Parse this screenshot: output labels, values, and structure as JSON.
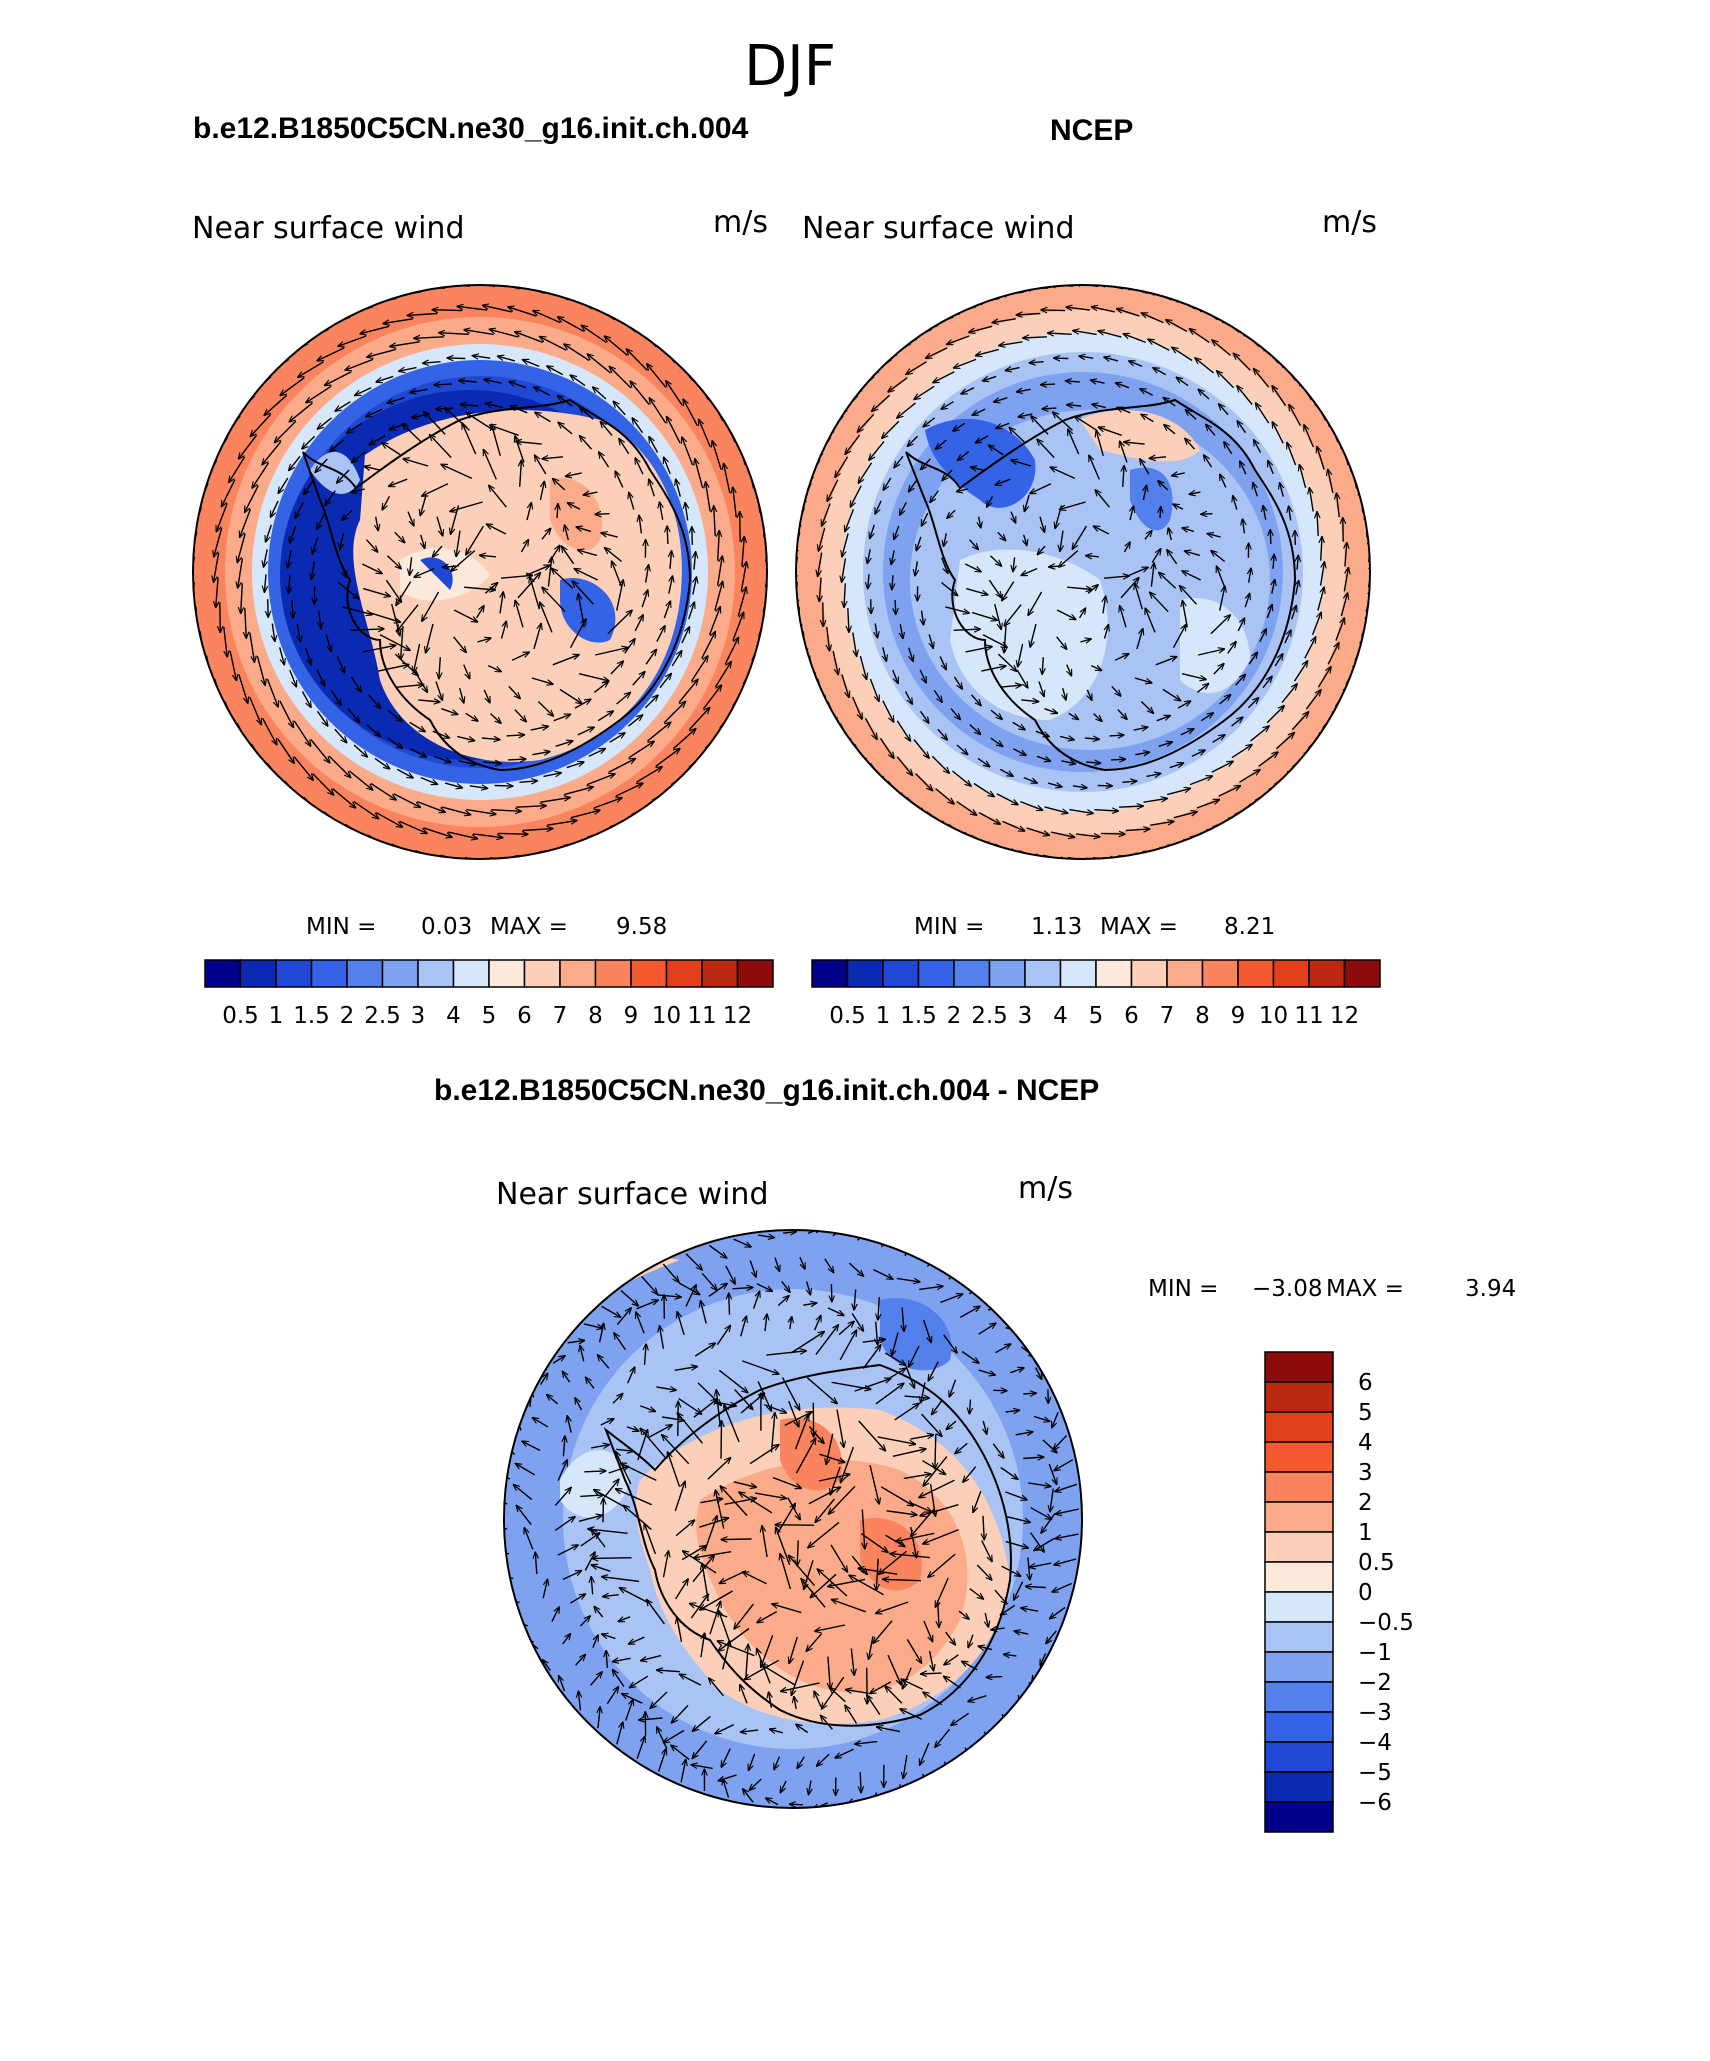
{
  "chart_data": {
    "type": "polar-contour-vector",
    "title": "DJF",
    "units_label": "m/s",
    "panels": [
      {
        "id": "model",
        "case_title": "b.e12.B1850C5CN.ne30_g16.init.ch.004",
        "variable_label": "Near surface wind",
        "units": "m/s",
        "min_label": "MIN =",
        "min": "0.03",
        "max_label": "MAX =",
        "max": "9.58",
        "colorbar": {
          "orientation": "horizontal",
          "levels": [
            "0.5",
            "1",
            "1.5",
            "2",
            "2.5",
            "3",
            "4",
            "5",
            "6",
            "7",
            "8",
            "9",
            "10",
            "11",
            "12"
          ],
          "colors": [
            "#00008b",
            "#0a2ab4",
            "#1f48d4",
            "#3463e6",
            "#5480ec",
            "#7ea1f0",
            "#a9c3f5",
            "#d6e6fb",
            "#fde9dc",
            "#fcd0b8",
            "#fbab8a",
            "#f9845e",
            "#f35a2f",
            "#e2401a",
            "#bb2a10",
            "#8e0b0b"
          ]
        }
      },
      {
        "id": "obs",
        "case_title": "NCEP",
        "variable_label": "Near surface wind",
        "units": "m/s",
        "min_label": "MIN =",
        "min": "1.13",
        "max_label": "MAX =",
        "max": "8.21",
        "colorbar": {
          "orientation": "horizontal",
          "levels": [
            "0.5",
            "1",
            "1.5",
            "2",
            "2.5",
            "3",
            "4",
            "5",
            "6",
            "7",
            "8",
            "9",
            "10",
            "11",
            "12"
          ],
          "colors": [
            "#00008b",
            "#0a2ab4",
            "#1f48d4",
            "#3463e6",
            "#5480ec",
            "#7ea1f0",
            "#a9c3f5",
            "#d6e6fb",
            "#fde9dc",
            "#fcd0b8",
            "#fbab8a",
            "#f9845e",
            "#f35a2f",
            "#e2401a",
            "#bb2a10",
            "#8e0b0b"
          ]
        }
      },
      {
        "id": "diff",
        "case_title": "b.e12.B1850C5CN.ne30_g16.init.ch.004 - NCEP",
        "variable_label": "Near surface wind",
        "units": "m/s",
        "min_label": "MIN =",
        "min": "−3.08",
        "max_label": "MAX =",
        "max": "3.94",
        "colorbar": {
          "orientation": "vertical",
          "levels": [
            "6",
            "5",
            "4",
            "3",
            "2",
            "1",
            "0.5",
            "0",
            "−0.5",
            "−1",
            "−2",
            "−3",
            "−4",
            "−5",
            "−6"
          ],
          "colors": [
            "#8e0b0b",
            "#bb2a10",
            "#e2401a",
            "#f35a2f",
            "#f9845e",
            "#fbab8a",
            "#fcd0b8",
            "#fde9dc",
            "#d6e6fb",
            "#a9c3f5",
            "#7ea1f0",
            "#5480ec",
            "#3463e6",
            "#1f48d4",
            "#0a2ab4",
            "#00008b"
          ]
        }
      }
    ]
  }
}
